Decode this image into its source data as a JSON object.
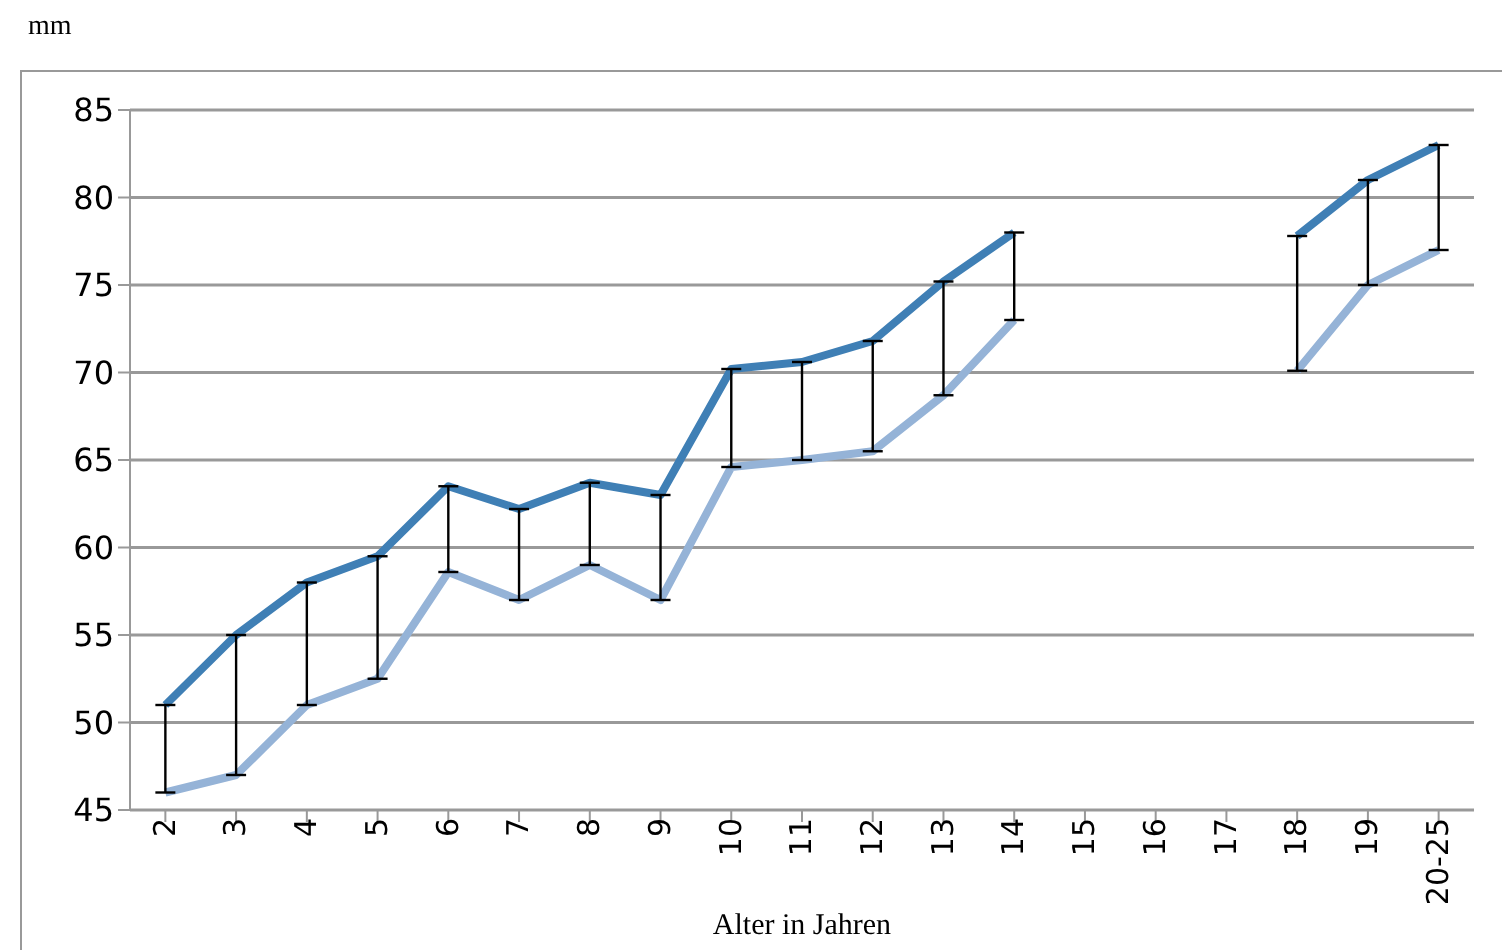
{
  "chart_data": {
    "type": "line",
    "ylabel": "mm",
    "xlabel": "Alter in Jahren",
    "categories": [
      "2",
      "3",
      "4",
      "5",
      "6",
      "7",
      "8",
      "9",
      "10",
      "11",
      "12",
      "13",
      "14",
      "15",
      "16",
      "17",
      "18",
      "19",
      "20-25"
    ],
    "series": [
      {
        "color": "#3f7fb5",
        "values": [
          51,
          55,
          58,
          59.5,
          63.5,
          62.2,
          63.7,
          63,
          70.2,
          70.6,
          71.8,
          75.2,
          78,
          null,
          null,
          null,
          77.8,
          81,
          83
        ],
        "errors": [
          [
            46,
            51
          ],
          [
            47,
            55
          ],
          [
            51,
            58
          ],
          [
            52.5,
            59.5
          ],
          [
            58.6,
            63.5
          ],
          [
            57,
            62.2
          ],
          [
            59,
            63.7
          ],
          [
            57,
            63
          ],
          [
            64.6,
            70.2
          ],
          [
            65,
            70.6
          ],
          [
            65.5,
            71.8
          ],
          [
            68.7,
            75.2
          ],
          [
            73,
            78
          ],
          null,
          null,
          null,
          [
            70.1,
            77.8
          ],
          [
            75,
            81
          ],
          [
            77,
            83
          ]
        ]
      },
      {
        "color": "#95b3d7",
        "values": [
          46,
          47,
          51,
          52.5,
          58.6,
          57,
          59,
          57,
          64.6,
          65,
          65.5,
          68.7,
          73,
          null,
          null,
          null,
          70.1,
          75,
          77
        ]
      }
    ],
    "ylim": [
      45,
      85
    ],
    "yticks": [
      45,
      50,
      55,
      60,
      65,
      70,
      75,
      80,
      85
    ],
    "grid": "y",
    "marker": "none",
    "line_style": "solid"
  }
}
